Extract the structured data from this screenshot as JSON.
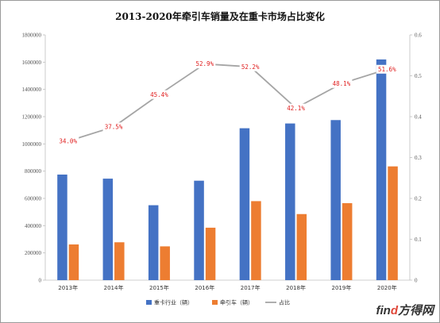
{
  "chart_data": {
    "type": "bar",
    "title": "2013-2020年牵引车销量及在重卡市场占比变化",
    "categories": [
      "2013年",
      "2014年",
      "2015年",
      "2016年",
      "2017年",
      "2018年",
      "2019年",
      "2020年"
    ],
    "series": [
      {
        "name": "重卡行业（辆）",
        "values": [
          775000,
          745000,
          550000,
          730000,
          1115000,
          1150000,
          1175000,
          1620000
        ],
        "color": "#4472c4",
        "axis": "left"
      },
      {
        "name": "牵引车（辆）",
        "values": [
          262000,
          278000,
          248000,
          385000,
          580000,
          485000,
          565000,
          835000
        ],
        "color": "#ed7d31",
        "axis": "left"
      },
      {
        "name": "占比",
        "type": "line",
        "values": [
          0.34,
          0.375,
          0.454,
          0.529,
          0.522,
          0.421,
          0.481,
          0.516
        ],
        "labels": [
          "34.0%",
          "37.5%",
          "45.4%",
          "52.9%",
          "52.2%",
          "42.1%",
          "48.1%",
          "51.6%"
        ],
        "color": "#a5a5a5",
        "axis": "right"
      }
    ],
    "ylim": [
      0,
      1800000
    ],
    "yticks": [
      "0",
      "200000",
      "400000",
      "600000",
      "800000",
      "1000000",
      "1200000",
      "1400000",
      "1600000",
      "1800000"
    ],
    "y2lim": [
      0,
      0.6
    ],
    "y2ticks": [
      "0",
      "0.1",
      "0.2",
      "0.3",
      "0.4",
      "0.5",
      "0.6"
    ],
    "legend_position": "bottom",
    "grid": false
  },
  "watermark": {
    "prefix": "fin",
    "accent": "d",
    "suffix": "方得网"
  }
}
